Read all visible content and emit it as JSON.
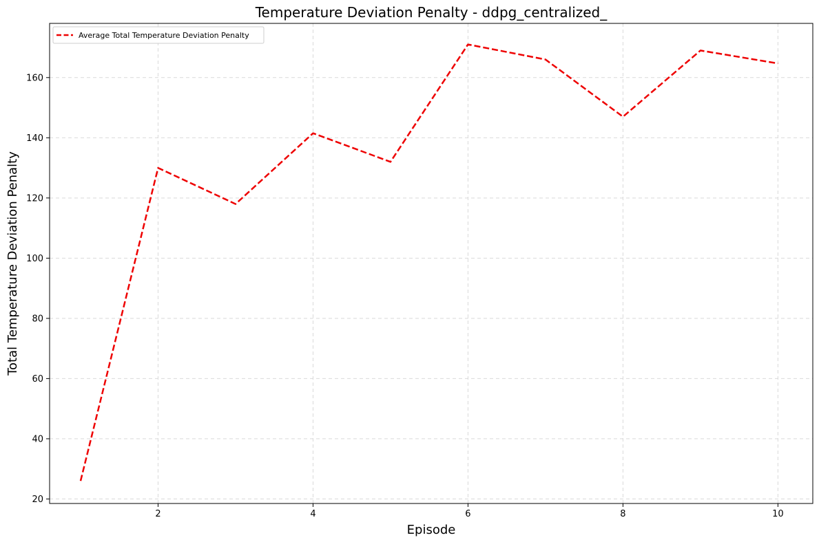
{
  "chart_data": {
    "type": "line",
    "title": "Temperature Deviation Penalty - ddpg_centralized_",
    "xlabel": "Episode",
    "ylabel": "Total Temperature Deviation Penalty",
    "x": [
      1,
      2,
      3,
      4,
      5,
      6,
      7,
      8,
      9,
      10
    ],
    "series": [
      {
        "name": "Average Total Temperature Deviation Penalty",
        "values": [
          26,
          130,
          118,
          141.5,
          132,
          171,
          166,
          147,
          169,
          164.7
        ],
        "color": "#ee0000",
        "style": "dashed"
      }
    ],
    "xlim": [
      0.6,
      10.45
    ],
    "ylim": [
      18.5,
      178
    ],
    "xticks": [
      2,
      4,
      6,
      8,
      10
    ],
    "yticks": [
      20,
      40,
      60,
      80,
      100,
      120,
      140,
      160
    ],
    "grid": true,
    "legend_position": "top-left"
  }
}
